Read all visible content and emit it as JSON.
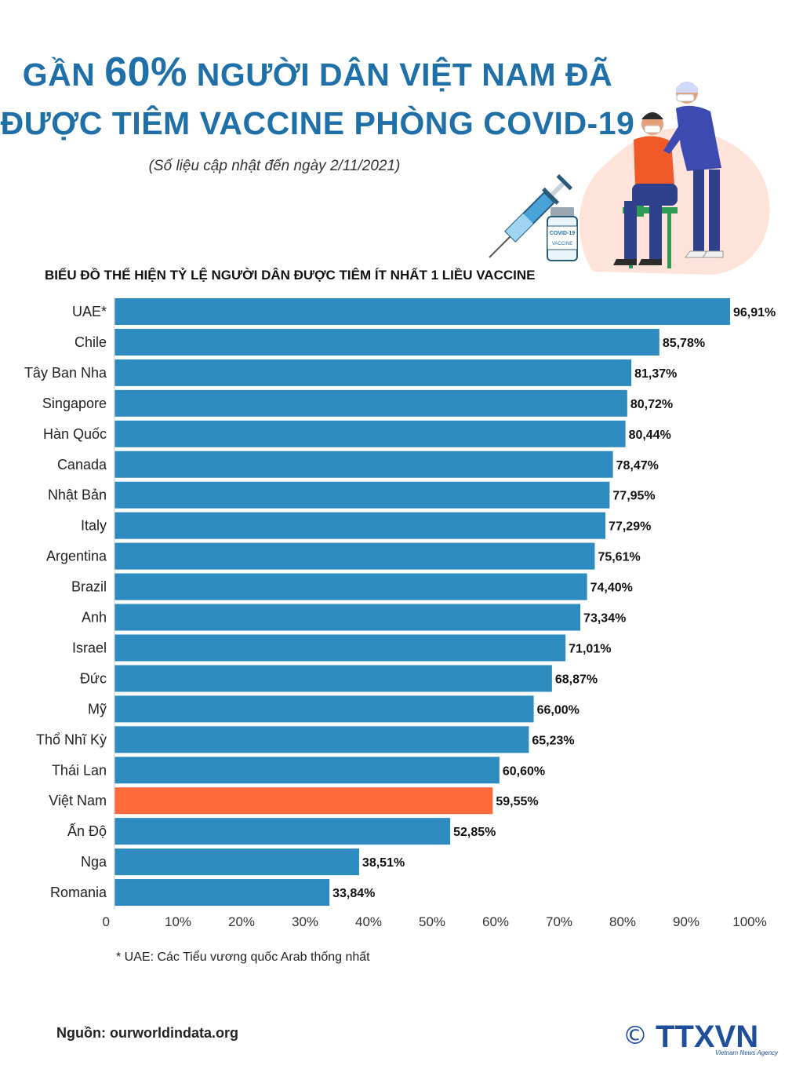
{
  "header": {
    "title_line1_pre": "GẦN ",
    "title_line1_big": "60%",
    "title_line1_post": " NGƯỜI DÂN VIỆT NAM ĐÃ",
    "title_line2": "ĐƯỢC TIÊM VACCINE PHÒNG COVID-19",
    "subtitle": "(Số liệu cập nhật đến ngày 2/11/2021)"
  },
  "illustration": {
    "vial_label_1": "COVID-19",
    "vial_label_2": "VACCINE"
  },
  "colors": {
    "bar": "#2e8bc0",
    "highlight": "#ff6a3c",
    "title": "#1f6fa8"
  },
  "chart_data": {
    "type": "bar",
    "orientation": "horizontal",
    "title": "BIỂU ĐỒ THỂ HIỆN TỶ LỆ NGƯỜI DÂN ĐƯỢC TIÊM  ÍT NHẤT 1 LIỀU VACCINE",
    "categories": [
      "UAE*",
      "Chile",
      "Tây Ban Nha",
      "Singapore",
      "Hàn Quốc",
      "Canada",
      "Nhật Bản",
      "Italy",
      "Argentina",
      "Brazil",
      "Anh",
      "Israel",
      "Đức",
      "Mỹ",
      "Thổ Nhĩ Kỳ",
      "Thái Lan",
      "Việt Nam",
      "Ấn Độ",
      "Nga",
      "Romania"
    ],
    "values": [
      96.91,
      85.78,
      81.37,
      80.72,
      80.44,
      78.47,
      77.95,
      77.29,
      75.61,
      74.4,
      73.34,
      71.01,
      68.87,
      66.0,
      65.23,
      60.6,
      59.55,
      52.85,
      38.51,
      33.84
    ],
    "value_labels": [
      "96,91%",
      "85,78%",
      "81,37%",
      "80,72%",
      "80,44%",
      "78,47%",
      "77,95%",
      "77,29%",
      "75,61%",
      "74,40%",
      "73,34%",
      "71,01%",
      "68,87%",
      "66,00%",
      "65,23%",
      "60,60%",
      "59,55%",
      "52,85%",
      "38,51%",
      "33,84%"
    ],
    "highlight_category": "Việt Nam",
    "xlim": [
      0,
      100
    ],
    "xticks": [
      0,
      10,
      20,
      30,
      40,
      50,
      60,
      70,
      80,
      90,
      100
    ],
    "xtick_labels": [
      "0",
      "10%",
      "20%",
      "30%",
      "40%",
      "50%",
      "60%",
      "70%",
      "80%",
      "90%",
      "100%"
    ],
    "grid": false,
    "legend": "none"
  },
  "footnote": "* UAE: Các Tiểu vương quốc Arab thống nhất",
  "source": "Nguồn: ourworldindata.org",
  "logo": {
    "copyright": "©",
    "name": "TTXVN",
    "tagline": "Vietnam News Agency"
  }
}
